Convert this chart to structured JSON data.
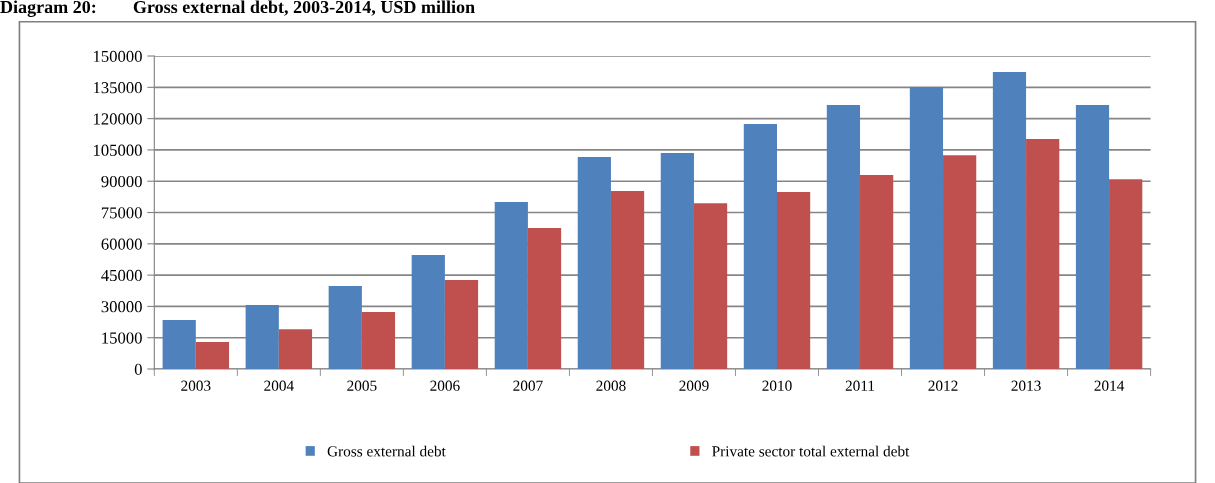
{
  "chart_data": {
    "type": "bar",
    "title": "Diagram 20:        Gross external debt, 2003-2014, USD million",
    "categories": [
      "2003",
      "2004",
      "2005",
      "2006",
      "2007",
      "2008",
      "2009",
      "2010",
      "2011",
      "2012",
      "2013",
      "2014"
    ],
    "series": [
      {
        "name": "Gross external debt",
        "color": "#4f81bd",
        "values": [
          23500,
          30700,
          39800,
          54600,
          80000,
          101600,
          103500,
          117400,
          126500,
          135100,
          142300,
          126500
        ]
      },
      {
        "name": "Private sector total external debt",
        "color": "#c0504d",
        "values": [
          13000,
          19000,
          27300,
          42600,
          67600,
          85300,
          79500,
          84800,
          93000,
          102500,
          110200,
          91000
        ]
      }
    ],
    "ylim": [
      0,
      150000
    ],
    "yticks": [
      0,
      15000,
      30000,
      45000,
      60000,
      75000,
      90000,
      105000,
      120000,
      135000,
      150000
    ],
    "grid": "y",
    "legend": "bottom"
  }
}
